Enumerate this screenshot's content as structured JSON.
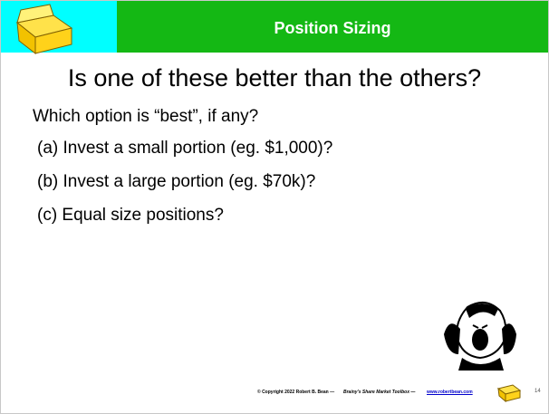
{
  "header": {
    "title": "Position Sizing"
  },
  "body": {
    "heading": "Is one of these better than the others?",
    "question": "Which option is “best”, if any?",
    "options": [
      "(a) Invest a small portion  (eg. $1,000)?",
      "(b) Invest a large portion (eg. $70k)?",
      "(c) Equal size positions?"
    ]
  },
  "footer": {
    "copyright": "© Copyright 2022 Robert B. Bean —",
    "toolbox": "Brainy's Share Market Toolbox —",
    "url": "www.robertbean.com",
    "page": "14"
  }
}
